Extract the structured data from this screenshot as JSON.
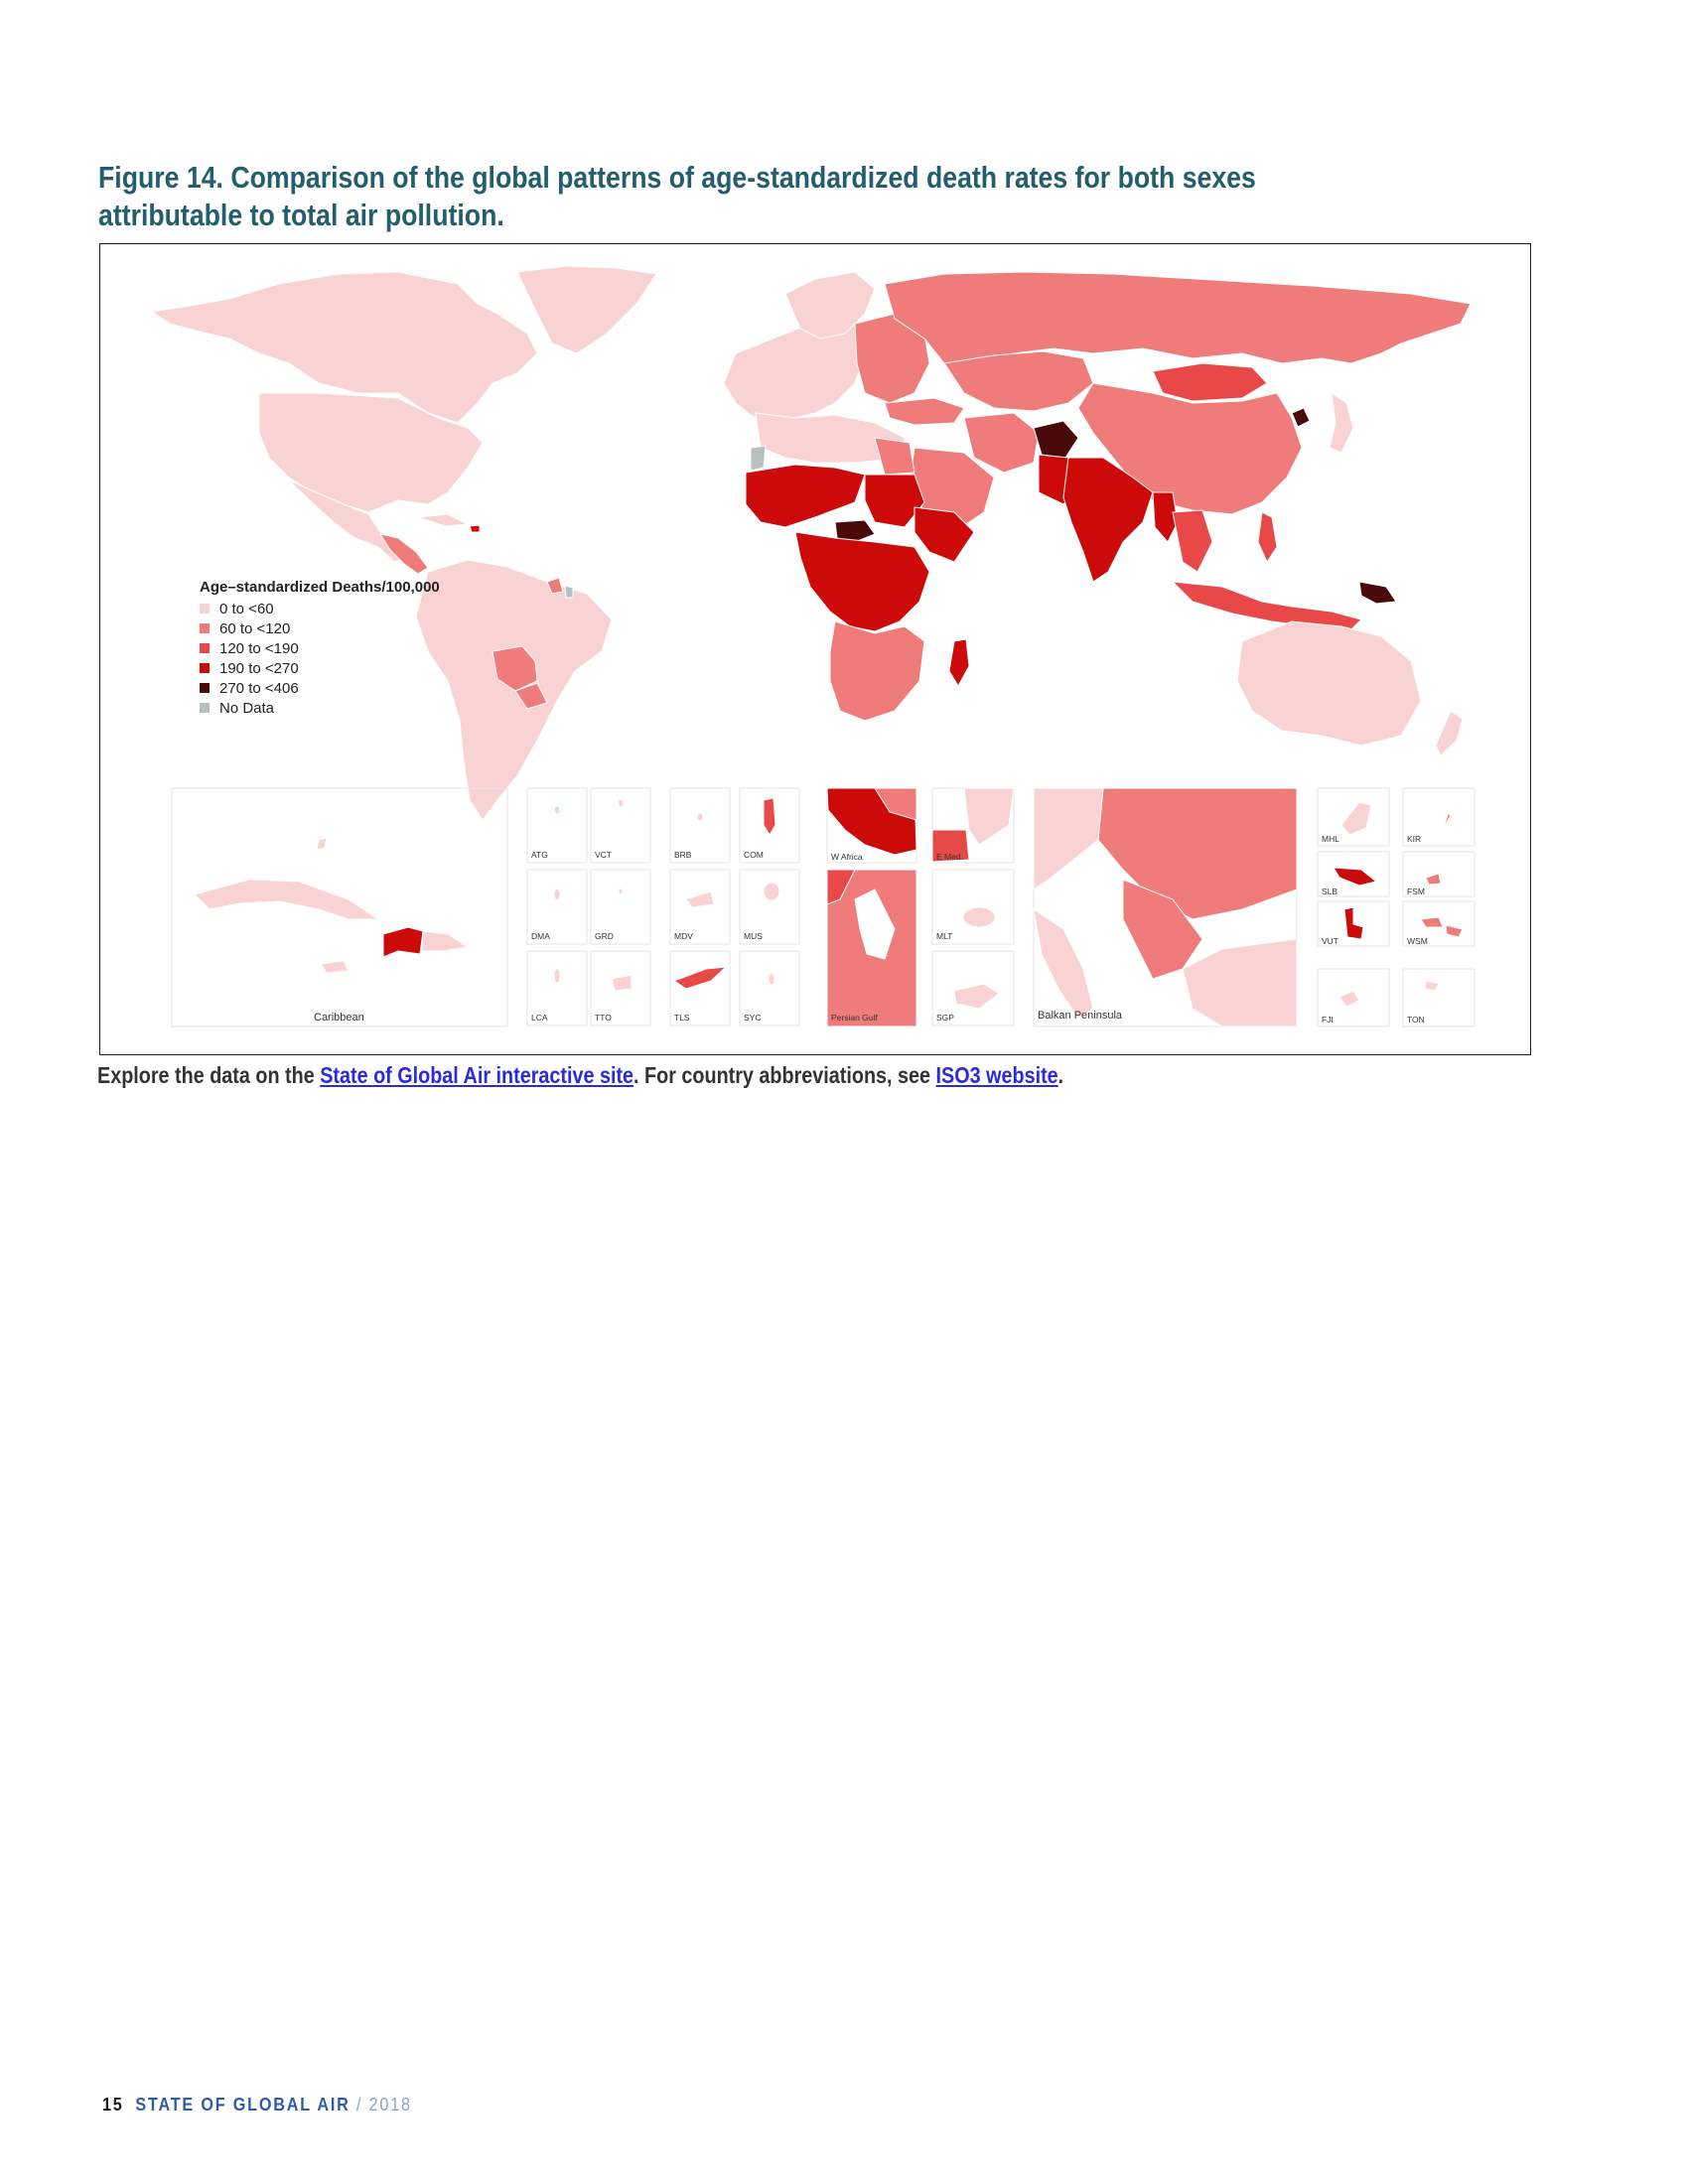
{
  "figure": {
    "title": "Figure 14. Comparison of the global patterns of age-standardized death rates for both sexes attributable to total air pollution."
  },
  "legend": {
    "title": "Age–standardized Deaths/100,000",
    "items": [
      {
        "label": "0 to <60",
        "color": "#f9d3d3"
      },
      {
        "label": "60 to <120",
        "color": "#f07b7b"
      },
      {
        "label": "120 to <190",
        "color": "#e84848"
      },
      {
        "label": "190 to <270",
        "color": "#cc0a0a"
      },
      {
        "label": "270 to <406",
        "color": "#4a0a0a"
      },
      {
        "label": "No Data",
        "color": "#b9c0c0"
      }
    ]
  },
  "insets": {
    "caribbean": "Caribbean",
    "small": [
      "ATG",
      "VCT",
      "BRB",
      "COM",
      "DMA",
      "GRD",
      "MDV",
      "MUS",
      "LCA",
      "TTO",
      "TLS",
      "SYC"
    ],
    "regions": [
      "W Africa",
      "E Med.",
      "MLT",
      "Persian Gulf",
      "SGP"
    ],
    "balkan": "Balkan Peninsula",
    "pacific": [
      "MHL",
      "KIR",
      "SLB",
      "FSM",
      "VUT",
      "WSM",
      "FJI",
      "TON"
    ]
  },
  "caption": {
    "prefix": "Explore the data on the ",
    "link1": "State of Global Air interactive site",
    "middle": ". For country abbreviations, see ",
    "link2": "ISO3 website",
    "suffix": "."
  },
  "footer": {
    "page": "15",
    "publication": "STATE OF GLOBAL AIR",
    "year": "/ 2018"
  }
}
